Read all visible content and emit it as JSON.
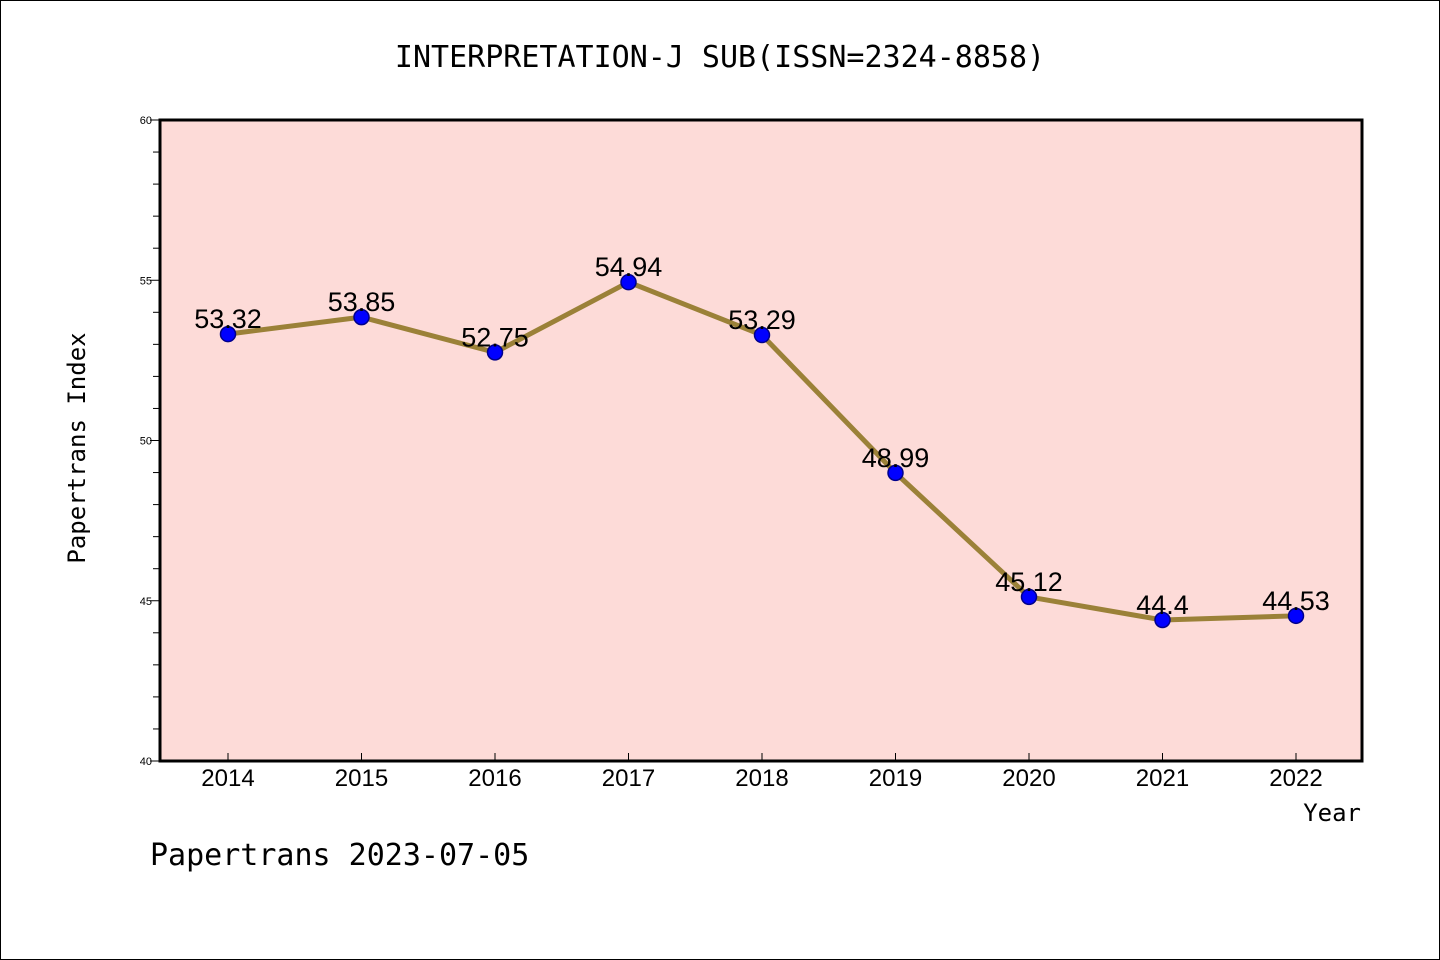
{
  "chart_data": {
    "type": "line",
    "title": "INTERPRETATION-J SUB(ISSN=2324-8858)",
    "xlabel": "Year",
    "ylabel": "Papertrans Index",
    "categories": [
      "2014",
      "2015",
      "2016",
      "2017",
      "2018",
      "2019",
      "2020",
      "2021",
      "2022"
    ],
    "series": [
      {
        "values": [
          53.32,
          53.85,
          52.75,
          54.94,
          53.29,
          48.99,
          45.12,
          44.4,
          44.53
        ],
        "labels": [
          "53.32",
          "53.85",
          "52.75",
          "54.94",
          "53.29",
          "48.99",
          "45.12",
          "44.4",
          "44.53"
        ]
      }
    ],
    "ylim": [
      40,
      60
    ],
    "yticks": [
      "40",
      "45",
      "50",
      "55",
      "60"
    ],
    "footer": "Papertrans 2023-07-05",
    "colors": {
      "plot_background": "#fddbd8",
      "line": "#9b8138",
      "marker": "#0000ff",
      "marker_edge": "#00008b"
    },
    "grid": false
  }
}
